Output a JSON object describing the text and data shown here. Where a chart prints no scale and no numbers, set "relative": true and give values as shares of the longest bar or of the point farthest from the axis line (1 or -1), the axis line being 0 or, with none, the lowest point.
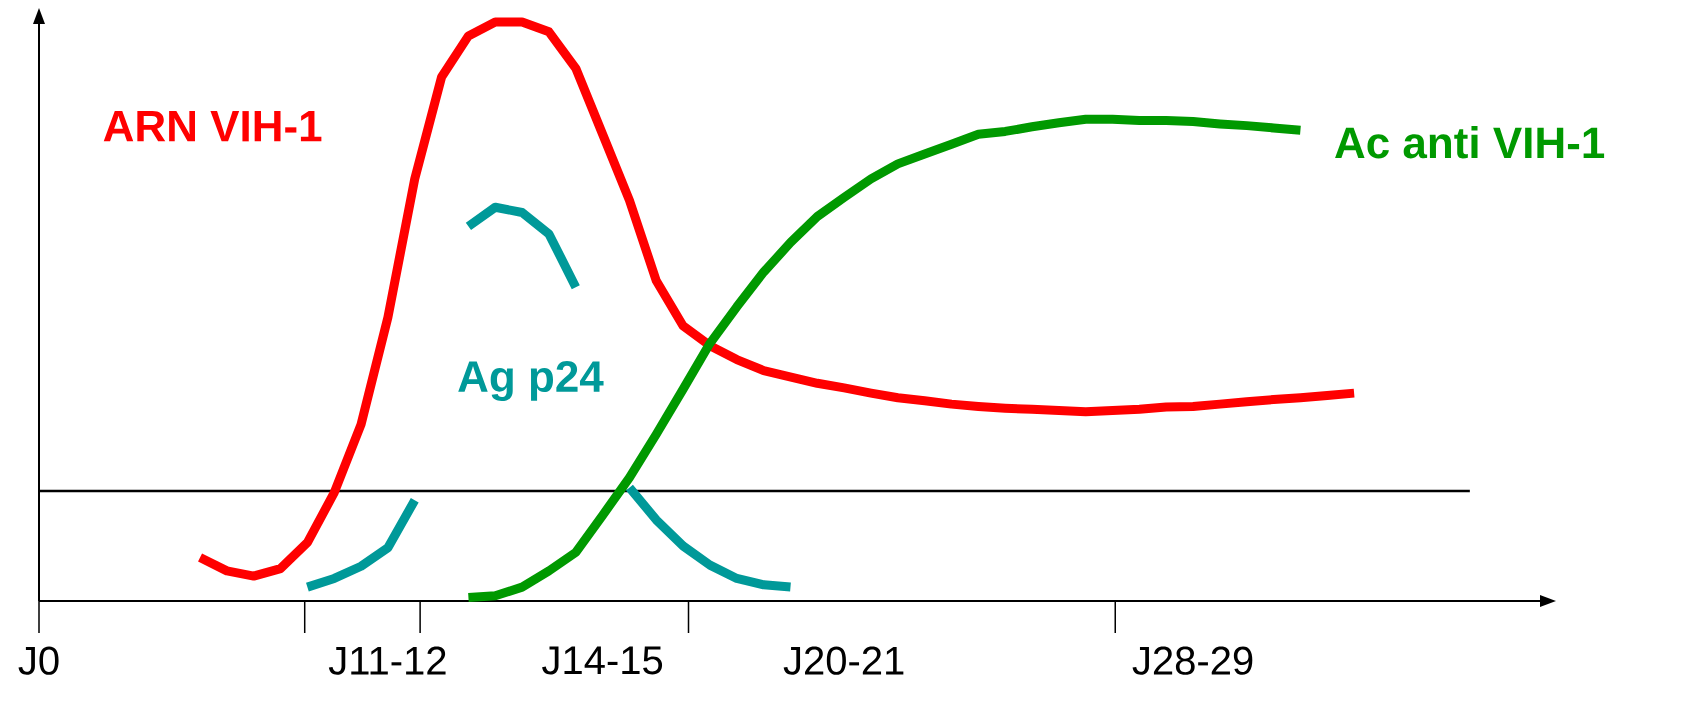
{
  "chart_data": {
    "type": "line",
    "relative": true,
    "categories": [
      "J0",
      null,
      null,
      null,
      null,
      null,
      null,
      null,
      null,
      null,
      null,
      null,
      null,
      "J11-12",
      null,
      null,
      null,
      null,
      null,
      null,
      null,
      "J14-15",
      null,
      null,
      null,
      null,
      null,
      null,
      null,
      null,
      "J20-21",
      null,
      null,
      null,
      null,
      null,
      null,
      null,
      null,
      null,
      null,
      null,
      null,
      "J28-29",
      null,
      null,
      null,
      null,
      null,
      null,
      null,
      null,
      null,
      null,
      null,
      null
    ],
    "ref_lines": [
      {
        "axis": "y",
        "value": 0.19,
        "color": "#000000"
      }
    ],
    "series": [
      {
        "name": "ARN VIH-1",
        "color": "#ff0000",
        "values": [
          null,
          null,
          null,
          null,
          null,
          null,
          0.075,
          0.052,
          0.043,
          0.056,
          0.101,
          0.187,
          0.305,
          0.49,
          0.729,
          0.905,
          0.976,
          1,
          1,
          0.983,
          0.92,
          0.806,
          0.692,
          0.553,
          0.475,
          0.441,
          0.417,
          0.398,
          0.387,
          0.376,
          0.368,
          0.359,
          0.351,
          0.346,
          0.34,
          0.336,
          0.333,
          0.331,
          0.329,
          0.327,
          0.329,
          0.331,
          0.335,
          0.336,
          0.34,
          0.344,
          0.348,
          0.351,
          0.355,
          0.359,
          null,
          null,
          null,
          null,
          null,
          null
        ]
      },
      {
        "name": "Ag p24",
        "color": "#009999",
        "values": [
          null,
          null,
          null,
          null,
          null,
          null,
          null,
          null,
          null,
          null,
          0.024,
          0.039,
          0.06,
          0.092,
          0.174,
          null,
          0.647,
          0.68,
          0.671,
          0.634,
          0.542,
          null,
          0.196,
          0.14,
          0.095,
          0.062,
          0.039,
          0.028,
          0.024,
          null,
          null,
          null,
          null,
          null,
          null,
          null,
          null,
          null,
          null,
          null,
          null,
          null,
          null,
          null,
          null,
          null,
          null,
          null,
          null,
          null,
          null,
          null,
          null,
          null,
          null,
          null
        ]
      },
      {
        "name": "Ac anti VIH-1",
        "color": "#009900",
        "values": [
          null,
          null,
          null,
          null,
          null,
          null,
          null,
          null,
          null,
          null,
          null,
          null,
          null,
          null,
          null,
          null,
          0.006,
          0.009,
          0.024,
          0.052,
          0.084,
          0.148,
          0.213,
          0.288,
          0.366,
          0.445,
          0.508,
          0.568,
          0.619,
          0.664,
          0.697,
          0.729,
          0.755,
          0.772,
          0.789,
          0.806,
          0.811,
          0.819,
          0.826,
          0.832,
          0.832,
          0.83,
          0.83,
          0.828,
          0.824,
          0.821,
          0.817,
          0.813,
          null,
          null,
          null,
          null,
          null,
          null,
          null,
          null
        ]
      }
    ]
  }
}
